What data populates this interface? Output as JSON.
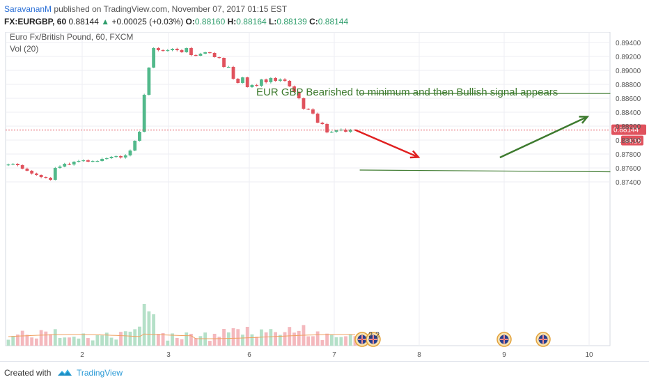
{
  "header": {
    "author": "SaravananM",
    "published_text": "published on TradingView.com, November 07, 2017 01:15 EST",
    "symbol": "FX:EURGBP, 60",
    "last": "0.88144",
    "change": "+0.00025 (+0.03%)",
    "open_label": "O:",
    "open": "0.88160",
    "high_label": "H:",
    "high": "0.88164",
    "low_label": "L:",
    "low": "0.88139",
    "close_label": "C:",
    "close": "0.88144"
  },
  "chart_data": {
    "type": "candlestick",
    "title": "Euro Fx/British Pound, 60, FXCM",
    "indicator": "Vol (20)",
    "annotation": "EUR GBP Bearished to minimum and then Bullish signal appears",
    "x_ticks": [
      "2",
      "3",
      "6",
      "7",
      "8",
      "9",
      "10"
    ],
    "y_ticks": [
      "0.89400",
      "0.89200",
      "0.89000",
      "0.88800",
      "0.88600",
      "0.88400",
      "0.88200",
      "0.88000",
      "0.87800",
      "0.87600",
      "0.87400"
    ],
    "ylim": [
      0.8722,
      0.8952
    ],
    "last_price_label": "0.88144",
    "last_price": 0.88144,
    "countdown": "44:16",
    "event_badges": [
      "2",
      "2"
    ],
    "closes": [
      0.8765,
      0.8766,
      0.8764,
      0.8759,
      0.8756,
      0.8752,
      0.875,
      0.8747,
      0.8746,
      0.8743,
      0.876,
      0.8762,
      0.8766,
      0.8765,
      0.8769,
      0.877,
      0.8771,
      0.8769,
      0.877,
      0.877,
      0.8773,
      0.8774,
      0.8776,
      0.8777,
      0.8775,
      0.8778,
      0.8785,
      0.8799,
      0.8812,
      0.8865,
      0.8904,
      0.8932,
      0.8929,
      0.8928,
      0.8929,
      0.8931,
      0.8929,
      0.8926,
      0.8932,
      0.8922,
      0.8921,
      0.8924,
      0.8926,
      0.8925,
      0.8919,
      0.8918,
      0.8905,
      0.8905,
      0.8888,
      0.8882,
      0.889,
      0.8876,
      0.8879,
      0.8878,
      0.8887,
      0.8883,
      0.8889,
      0.8885,
      0.8887,
      0.8885,
      0.8877,
      0.8869,
      0.886,
      0.8845,
      0.8844,
      0.8838,
      0.8825,
      0.8823,
      0.8811,
      0.8812,
      0.8814,
      0.8815,
      0.8812,
      0.8815,
      0.8814
    ],
    "annotations_lines": [
      {
        "type": "horizontal",
        "x1": 7.3,
        "y1": 0.88668,
        "x2": 10.25,
        "y2": 0.88668,
        "color": "#3d7a2e"
      },
      {
        "type": "horizontal",
        "x1": 7.3,
        "y1": 0.8757,
        "x2": 10.25,
        "y2": 0.87545,
        "color": "#3d7a2e"
      },
      {
        "type": "arrow",
        "x1": 7.25,
        "y1": 0.88144,
        "x2": 7.99,
        "y2": 0.87755,
        "color": "#e02020"
      },
      {
        "type": "arrow",
        "x1": 8.95,
        "y1": 0.8775,
        "x2": 9.98,
        "y2": 0.88335,
        "color": "#3d7a2e"
      }
    ],
    "colors": {
      "up": "#52b98b",
      "down": "#e0525d",
      "grid": "#eceef3",
      "last_line": "#e0525d",
      "annotation_text": "#3d7a2e"
    }
  },
  "footer": {
    "created_with": "Created with",
    "brand": "TradingView"
  }
}
